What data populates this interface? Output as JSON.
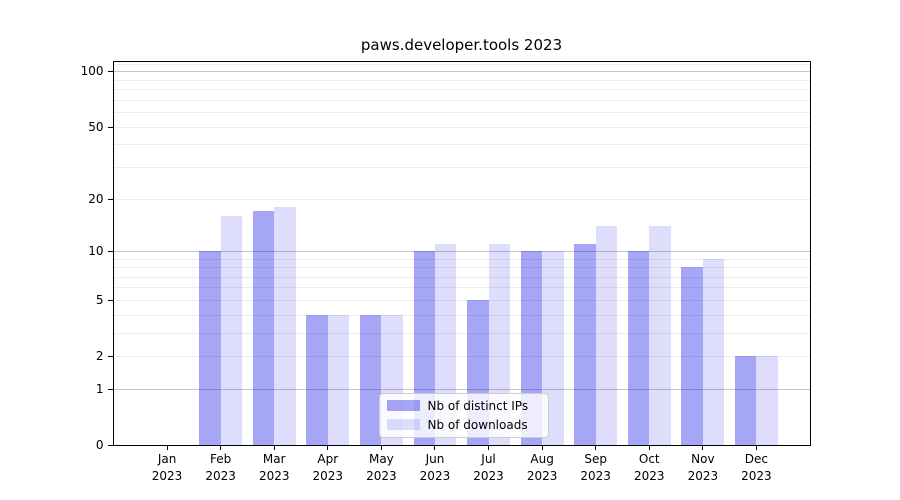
{
  "title": "paws.developer.tools 2023",
  "chart_data": {
    "type": "bar",
    "title": "paws.developer.tools 2023",
    "x_months": [
      "Jan",
      "Feb",
      "Mar",
      "Apr",
      "May",
      "Jun",
      "Jul",
      "Aug",
      "Sep",
      "Oct",
      "Nov",
      "Dec"
    ],
    "x_year": "2023",
    "series": [
      {
        "name": "Nb of distinct IPs",
        "color": "rgba(22,22,235,0.38)",
        "values": [
          0,
          10,
          17,
          4,
          4,
          10,
          5,
          10,
          11,
          10,
          8,
          2
        ]
      },
      {
        "name": "Nb of downloads",
        "color": "rgba(22,22,235,0.14)",
        "values": [
          0,
          16,
          18,
          4,
          4,
          11,
          11,
          10,
          14,
          14,
          9,
          2
        ]
      }
    ],
    "y_scale": "log10(1+y)",
    "ylim": [
      0,
      112
    ],
    "y_major_ticks": [
      100,
      50,
      20,
      10,
      5,
      2,
      1,
      0
    ],
    "y_major_gridlines": [
      1,
      10,
      100
    ],
    "y_minor_gridlines": [
      2,
      3,
      4,
      5,
      6,
      7,
      8,
      9,
      20,
      30,
      40,
      50,
      60,
      70,
      80,
      90,
      110
    ],
    "grid": true,
    "legend_position": "lower center",
    "colors": {
      "grid_major": "#c6c6c6",
      "grid_minor": "#ececec",
      "axis": "#000000",
      "text": "#000000",
      "legend_border": "#cccccc"
    }
  }
}
